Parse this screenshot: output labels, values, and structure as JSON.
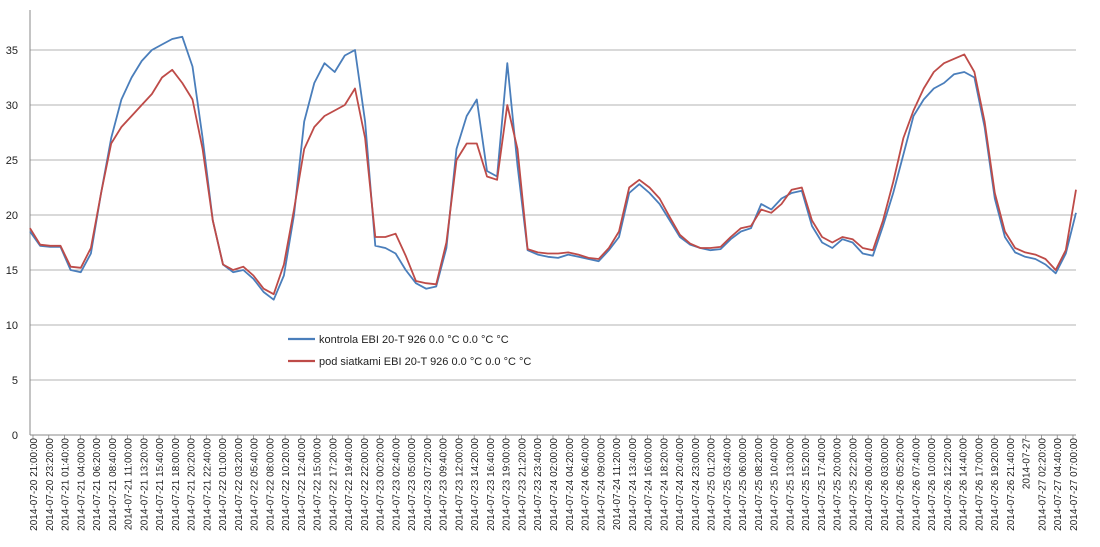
{
  "chart_data": {
    "type": "line",
    "title": "",
    "xlabel": "",
    "ylabel": "",
    "ylim": [
      0,
      35
    ],
    "yticks": [
      0,
      5,
      10,
      15,
      20,
      25,
      30,
      35
    ],
    "grid": true,
    "legend_position": "center-left",
    "x_tick_labels": [
      "2014-07-20 21:00:00",
      "2014-07-20 23:20:00",
      "2014-07-21 01:40:00",
      "2014-07-21 04:00:00",
      "2014-07-21 06:20:00",
      "2014-07-21 08:40:00",
      "2014-07-21 11:00:00",
      "2014-07-21 13:20:00",
      "2014-07-21 15:40:00",
      "2014-07-21 18:00:00",
      "2014-07-21 20:20:00",
      "2014-07-21 22:40:00",
      "2014-07-22 01:00:00",
      "2014-07-22 03:20:00",
      "2014-07-22 05:40:00",
      "2014-07-22 08:00:00",
      "2014-07-22 10:20:00",
      "2014-07-22 12:40:00",
      "2014-07-22 15:00:00",
      "2014-07-22 17:20:00",
      "2014-07-22 19:40:00",
      "2014-07-22 22:00:00",
      "2014-07-23 00:20:00",
      "2014-07-23 02:40:00",
      "2014-07-23 05:00:00",
      "2014-07-23 07:20:00",
      "2014-07-23 09:40:00",
      "2014-07-23 12:00:00",
      "2014-07-23 14:20:00",
      "2014-07-23 16:40:00",
      "2014-07-23 19:00:00",
      "2014-07-23 21:20:00",
      "2014-07-23 23:40:00",
      "2014-07-24 02:00:00",
      "2014-07-24 04:20:00",
      "2014-07-24 06:40:00",
      "2014-07-24 09:00:00",
      "2014-07-24 11:20:00",
      "2014-07-24 13:40:00",
      "2014-07-24 16:00:00",
      "2014-07-24 18:20:00",
      "2014-07-24 20:40:00",
      "2014-07-24 23:00:00",
      "2014-07-25 01:20:00",
      "2014-07-25 03:40:00",
      "2014-07-25 06:00:00",
      "2014-07-25 08:20:00",
      "2014-07-25 10:40:00",
      "2014-07-25 13:00:00",
      "2014-07-25 15:20:00",
      "2014-07-25 17:40:00",
      "2014-07-25 20:00:00",
      "2014-07-25 22:20:00",
      "2014-07-26 00:40:00",
      "2014-07-26 03:00:00",
      "2014-07-26 05:20:00",
      "2014-07-26 07:40:00",
      "2014-07-26 10:00:00",
      "2014-07-26 12:20:00",
      "2014-07-26 14:40:00",
      "2014-07-26 17:00:00",
      "2014-07-26 19:20:00",
      "2014-07-26 21:40:00",
      "2014-07-27",
      "2014-07-27 02:20:00",
      "2014-07-27 04:40:00",
      "2014-07-27 07:00:00"
    ],
    "series": [
      {
        "name": "kontrola EBI  20-T 926 0.0 °C 0.0 °C °C",
        "color": "#4a7ebb",
        "values": [
          18.5,
          17.2,
          17.1,
          17.1,
          15.0,
          14.8,
          16.5,
          22.0,
          27.0,
          30.5,
          32.5,
          34.0,
          35.0,
          35.5,
          36.0,
          36.2,
          33.5,
          27.0,
          19.5,
          15.5,
          14.8,
          15.0,
          14.2,
          13.0,
          12.3,
          14.5,
          20.0,
          28.5,
          32.0,
          33.8,
          33.0,
          34.5,
          35.0,
          28.5,
          17.2,
          17.0,
          16.5,
          15.0,
          13.8,
          13.3,
          13.5,
          17.0,
          26.0,
          29.0,
          30.5,
          24.0,
          23.5,
          33.8,
          24.5,
          16.8,
          16.4,
          16.2,
          16.1,
          16.4,
          16.2,
          16.0,
          15.8,
          16.8,
          18.0,
          22.0,
          22.8,
          22.0,
          21.0,
          19.5,
          18.0,
          17.3,
          17.0,
          16.8,
          16.9,
          17.8,
          18.5,
          18.8,
          21.0,
          20.5,
          21.5,
          22.0,
          22.2,
          19.0,
          17.5,
          17.0,
          17.8,
          17.5,
          16.5,
          16.3,
          19.0,
          22.0,
          25.5,
          29.0,
          30.5,
          31.5,
          32.0,
          32.8,
          33.0,
          32.5,
          28.0,
          21.5,
          18.0,
          16.6,
          16.2,
          16.0,
          15.5,
          14.7,
          16.5,
          20.2
        ]
      },
      {
        "name": "pod siatkami  EBI  20-T 926 0.0 °C 0.0 °C °C",
        "color": "#be4b48",
        "values": [
          18.8,
          17.3,
          17.2,
          17.2,
          15.3,
          15.2,
          17.0,
          22.0,
          26.5,
          28.0,
          29.0,
          30.0,
          31.0,
          32.5,
          33.2,
          32.0,
          30.5,
          26.0,
          19.5,
          15.5,
          15.0,
          15.3,
          14.5,
          13.3,
          12.8,
          15.5,
          20.5,
          26.0,
          28.0,
          29.0,
          29.5,
          30.0,
          31.5,
          27.0,
          18.0,
          18.0,
          18.3,
          16.3,
          14.0,
          13.8,
          13.7,
          17.5,
          25.0,
          26.5,
          26.5,
          23.5,
          23.2,
          30.0,
          26.0,
          16.9,
          16.6,
          16.5,
          16.5,
          16.6,
          16.4,
          16.1,
          16.0,
          17.0,
          18.5,
          22.5,
          23.2,
          22.5,
          21.5,
          19.8,
          18.2,
          17.4,
          17.0,
          17.0,
          17.1,
          18.0,
          18.8,
          19.0,
          20.5,
          20.2,
          21.0,
          22.3,
          22.5,
          19.5,
          18.0,
          17.5,
          18.0,
          17.8,
          17.0,
          16.8,
          19.5,
          23.0,
          27.0,
          29.5,
          31.5,
          33.0,
          33.8,
          34.2,
          34.6,
          33.0,
          28.5,
          22.0,
          18.5,
          17.0,
          16.6,
          16.4,
          16.0,
          15.0,
          16.8,
          22.3
        ]
      }
    ]
  }
}
